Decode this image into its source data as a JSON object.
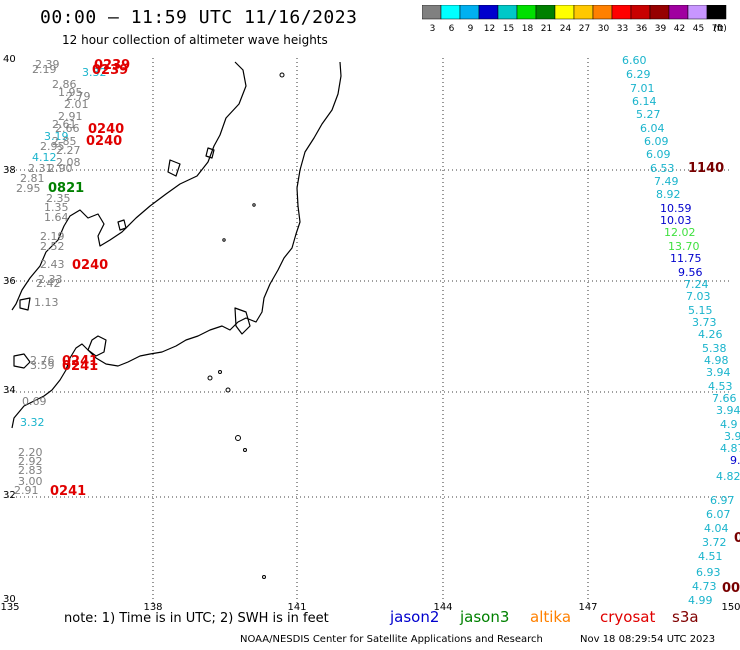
{
  "header": {
    "title": "00:00 – 11:59 UTC 11/16/2023",
    "subtitle": "12 hour collection of altimeter wave heights"
  },
  "legend": {
    "labels": [
      "3",
      "6",
      "9",
      "12",
      "15",
      "18",
      "21",
      "24",
      "27",
      "30",
      "33",
      "36",
      "39",
      "42",
      "45",
      "70"
    ],
    "unit": "(ft)",
    "colors": [
      "#808080",
      "#00ffff",
      "#00b0f0",
      "#0000cd",
      "#00c8c8",
      "#00e000",
      "#008000",
      "#ffff00",
      "#ffc800",
      "#ff8000",
      "#ff0000",
      "#c80000",
      "#960000",
      "#a000a0",
      "#c896ff",
      "#000000"
    ]
  },
  "axes": {
    "x_ticks": [
      "135",
      "138",
      "141",
      "144",
      "147",
      "150"
    ],
    "y_ticks": [
      "40",
      "38",
      "36",
      "34",
      "32",
      "30"
    ]
  },
  "colors": {
    "gray": "#808080",
    "cyan": "#1ab4cc",
    "navy": "#0000cd",
    "green": "#40e040",
    "red": "#e00000",
    "darkred": "#780000",
    "darkgreen": "#008000"
  },
  "labels": {
    "times_red": [
      "0239",
      "0239",
      "0240",
      "0240",
      "0240",
      "0241",
      "0241",
      "0241"
    ],
    "time_green": "0821",
    "time_darkred_1": "1140",
    "time_darkred_2": "00",
    "west_values": [
      "2.39",
      "2.19",
      "3.32",
      "2.86",
      "1.95",
      "2.79",
      "2.01",
      "2.91",
      "2.61",
      "2.66",
      "2.95",
      "3.19",
      "2.85",
      "2.27",
      "4.12",
      "2.08",
      "2.31",
      "2.90",
      "2.81",
      "2.95",
      "2.35",
      "1.35",
      "1.64",
      "2.19",
      "2.52",
      "2.43",
      "2.33",
      "2.42",
      "1.13",
      "2.76",
      "3.59",
      "0.69",
      "3.32",
      "2.20",
      "2.92",
      "2.83",
      "3.00",
      "2.91"
    ],
    "east_values": [
      "6.60",
      "6.29",
      "7.01",
      "6.14",
      "5.27",
      "6.04",
      "6.09",
      "6.09",
      "6.53",
      "7.49",
      "8.92",
      "10.59",
      "10.03",
      "12.02",
      "13.70",
      "11.75",
      "9.56",
      "7.24",
      "7.03",
      "5.15",
      "3.73",
      "4.26",
      "5.38",
      "4.98",
      "3.94",
      "4.53",
      "7.66",
      "3.94",
      "4.9",
      "3.9",
      "9.",
      "4.87",
      "4.82",
      "6.97",
      "6.07",
      "4.04",
      "3.72",
      "4.51",
      "6.93",
      "4.73",
      "4.99"
    ]
  },
  "footer": {
    "note": "note: 1) Time is in UTC; 2) SWH is in feet",
    "satellites": [
      {
        "name": "jason2",
        "color": "#0000cd"
      },
      {
        "name": "jason3",
        "color": "#008000"
      },
      {
        "name": "altika",
        "color": "#ff8000"
      },
      {
        "name": "cryosat",
        "color": "#e00000"
      },
      {
        "name": "s3a",
        "color": "#800000"
      }
    ],
    "credit": "NOAA/NESDIS Center for Satellite Applications and Research",
    "timestamp": "Nov 18 08:29:54 UTC 2023"
  }
}
